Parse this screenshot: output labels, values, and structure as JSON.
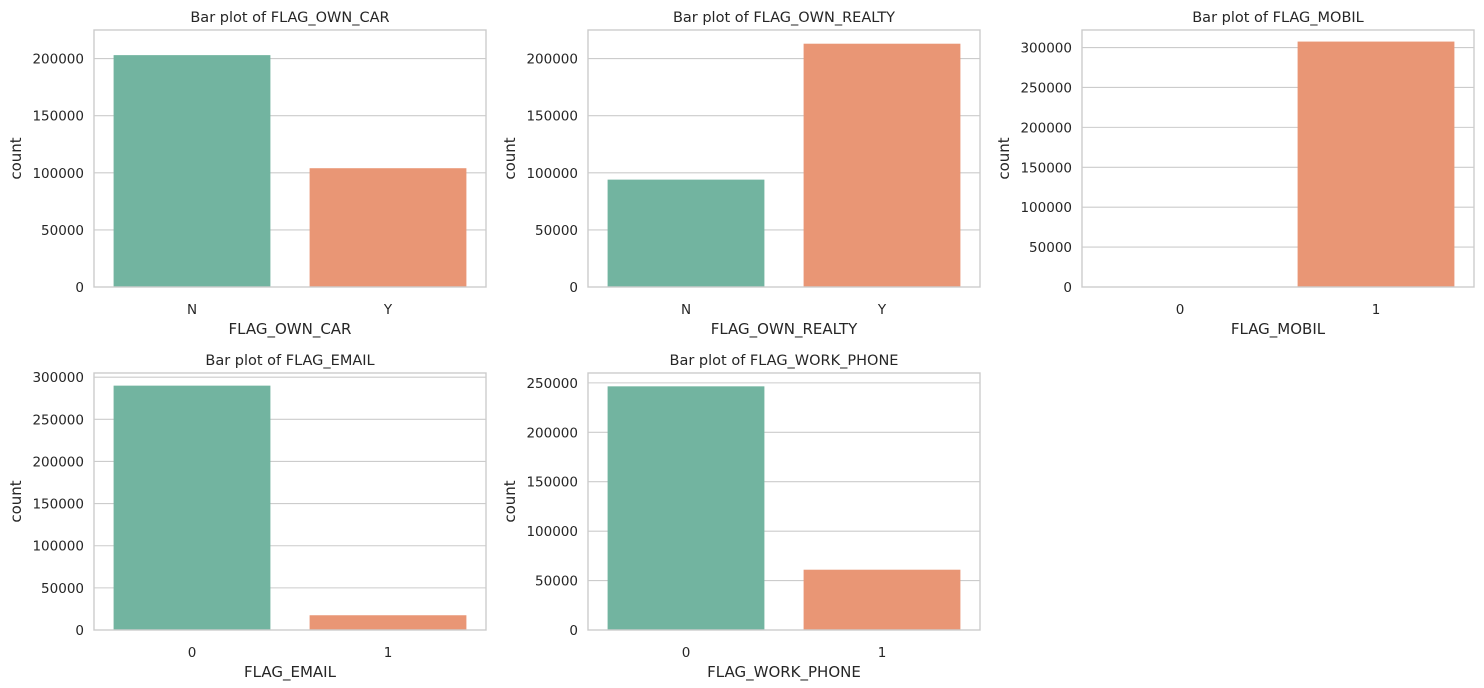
{
  "figure": {
    "background": "#ffffff",
    "series_colors": [
      "#72b4a0",
      "#e99675"
    ],
    "grid_color": "#cccccc"
  },
  "chart_data": [
    {
      "type": "bar",
      "title": "Bar plot of FLAG_OWN_CAR",
      "xlabel": "FLAG_OWN_CAR",
      "ylabel": "count",
      "categories": [
        "N",
        "Y"
      ],
      "values": [
        203000,
        104000
      ],
      "ylim": [
        0,
        225000
      ],
      "yticks": [
        0,
        50000,
        100000,
        150000,
        200000
      ],
      "ytick_labels": [
        "0",
        "50000",
        "100000",
        "150000",
        "200000"
      ],
      "grid": true
    },
    {
      "type": "bar",
      "title": "Bar plot of FLAG_OWN_REALTY",
      "xlabel": "FLAG_OWN_REALTY",
      "ylabel": "count",
      "categories": [
        "N",
        "Y"
      ],
      "values": [
        94000,
        213000
      ],
      "ylim": [
        0,
        225000
      ],
      "yticks": [
        0,
        50000,
        100000,
        150000,
        200000
      ],
      "ytick_labels": [
        "0",
        "50000",
        "100000",
        "150000",
        "200000"
      ],
      "grid": true
    },
    {
      "type": "bar",
      "title": "Bar plot of FLAG_MOBIL",
      "xlabel": "FLAG_MOBIL",
      "ylabel": "count",
      "categories": [
        "0",
        "1"
      ],
      "values": [
        0,
        307500
      ],
      "ylim": [
        0,
        322000
      ],
      "yticks": [
        0,
        50000,
        100000,
        150000,
        200000,
        250000,
        300000
      ],
      "ytick_labels": [
        "0",
        "50000",
        "100000",
        "150000",
        "200000",
        "250000",
        "300000"
      ],
      "grid": true
    },
    {
      "type": "bar",
      "title": "Bar plot of FLAG_EMAIL",
      "xlabel": "FLAG_EMAIL",
      "ylabel": "count",
      "categories": [
        "0",
        "1"
      ],
      "values": [
        290000,
        17500
      ],
      "ylim": [
        0,
        305000
      ],
      "yticks": [
        0,
        50000,
        100000,
        150000,
        200000,
        250000,
        300000
      ],
      "ytick_labels": [
        "0",
        "50000",
        "100000",
        "150000",
        "200000",
        "250000",
        "300000"
      ],
      "grid": true
    },
    {
      "type": "bar",
      "title": "Bar plot of FLAG_WORK_PHONE",
      "xlabel": "FLAG_WORK_PHONE",
      "ylabel": "count",
      "categories": [
        "0",
        "1"
      ],
      "values": [
        246500,
        61000
      ],
      "ylim": [
        0,
        260000
      ],
      "yticks": [
        0,
        50000,
        100000,
        150000,
        200000,
        250000
      ],
      "ytick_labels": [
        "0",
        "50000",
        "100000",
        "150000",
        "200000",
        "250000"
      ],
      "grid": true
    }
  ]
}
